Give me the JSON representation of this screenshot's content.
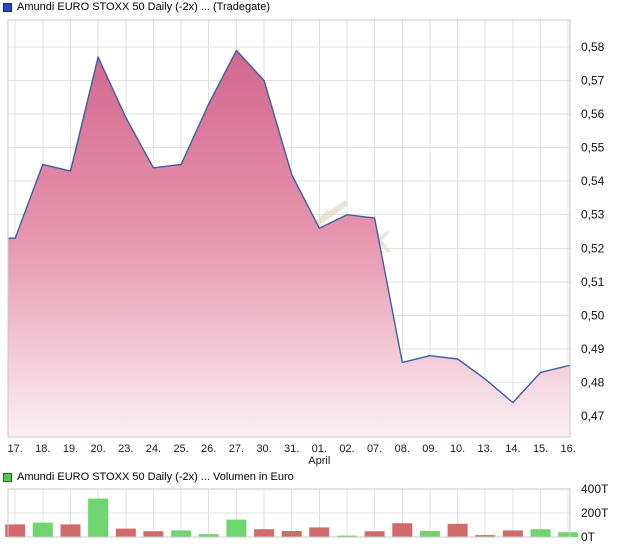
{
  "colors": {
    "line": "#3a5fa6",
    "area_fill_top": "#d0618a",
    "area_fill_mid": "#e795ae",
    "area_fill_bottom": "#fbf0f5",
    "bar_up": "#6fd66f",
    "bar_down": "#d26a6a",
    "price_icon": "#2348c8",
    "price_icon_border": "#122a7d",
    "volume_icon": "#4fc94f",
    "volume_icon_border": "#1d6e1d",
    "grid": "#e1e1e1",
    "watermark": "#e7decd"
  },
  "chart_data": [
    {
      "type": "area",
      "title": "Amundi EURO STOXX 50 Daily (-2x) ... (Tradegate)",
      "x": [
        "17.",
        "18.",
        "19.",
        "20.",
        "23.",
        "24.",
        "25.",
        "26.",
        "27.",
        "30.",
        "31.",
        "01.",
        "02.",
        "07.",
        "08.",
        "09.",
        "10.",
        "13.",
        "14.",
        "15.",
        "16."
      ],
      "x_period_label": "April",
      "values": [
        0.523,
        0.545,
        0.543,
        0.577,
        0.559,
        0.544,
        0.545,
        0.563,
        0.579,
        0.57,
        0.542,
        0.526,
        0.53,
        0.529,
        0.486,
        0.488,
        0.487,
        0.481,
        0.474,
        0.483,
        0.485
      ],
      "y_ticks": [
        "0,58",
        "0,57",
        "0,56",
        "0,55",
        "0,54",
        "0,53",
        "0,52",
        "0,51",
        "0,50",
        "0,49",
        "0,48",
        "0,47"
      ],
      "ylim": [
        0.4637,
        0.588
      ],
      "grid": "on",
      "legend_position": "top-left-title"
    },
    {
      "type": "bar",
      "title": "Amundi EURO STOXX 50 Daily (-2x) ... Volumen in Euro",
      "x": [
        "17.",
        "18.",
        "19.",
        "20.",
        "23.",
        "24.",
        "25.",
        "26.",
        "27.",
        "30.",
        "31.",
        "01.",
        "02.",
        "07.",
        "08.",
        "09.",
        "10.",
        "13.",
        "14.",
        "15.",
        "16."
      ],
      "values_thousands": [
        105,
        120,
        105,
        320,
        70,
        48,
        55,
        24,
        145,
        65,
        50,
        80,
        12,
        48,
        115,
        50,
        110,
        16,
        55,
        65,
        40
      ],
      "directions": [
        "down",
        "up",
        "down",
        "up",
        "down",
        "down",
        "up",
        "up",
        "up",
        "down",
        "down",
        "down",
        "up",
        "down",
        "down",
        "up",
        "down",
        "down",
        "down",
        "up",
        "up"
      ],
      "y_ticks": [
        "400T",
        "200T",
        "0T"
      ],
      "ylim_thousands": [
        0,
        400
      ],
      "unit": "Euro",
      "grid": "on"
    }
  ]
}
